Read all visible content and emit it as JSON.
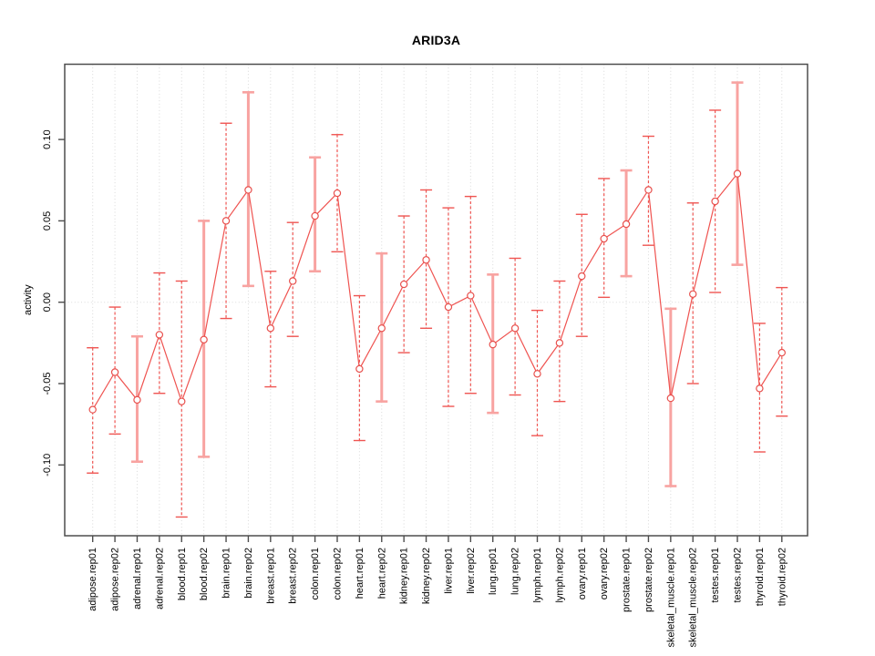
{
  "chart_data": {
    "type": "scatter",
    "subtype": "error-bar-line-plot",
    "title": "ARID3A",
    "xlabel": "",
    "ylabel": "activity",
    "legend": "none",
    "grid": "vertical dotted gridline at every category; dotted horizontal line at y=0",
    "ylim": [
      -0.145,
      0.147
    ],
    "yticks": [
      -0.1,
      -0.05,
      0.0,
      0.05,
      0.1
    ],
    "ytick_labels": [
      "-0.10",
      "-0.05",
      "0.00",
      "0.05",
      "0.10"
    ],
    "categories": [
      "adipose.rep01",
      "adipose.rep02",
      "adrenal.rep01",
      "adrenal.rep02",
      "blood.rep01",
      "blood.rep02",
      "brain.rep01",
      "brain.rep02",
      "breast.rep01",
      "breast.rep02",
      "colon.rep01",
      "colon.rep02",
      "heart.rep01",
      "heart.rep02",
      "kidney.rep01",
      "kidney.rep02",
      "liver.rep01",
      "liver.rep02",
      "lung.rep01",
      "lung.rep02",
      "lymph.rep01",
      "lymph.rep02",
      "ovary.rep01",
      "ovary.rep02",
      "prostate.rep01",
      "prostate.rep02",
      "skeletal_muscle.rep01",
      "skeletal_muscle.rep02",
      "testes.rep01",
      "testes.rep02",
      "thyroid.rep01",
      "thyroid.rep02"
    ],
    "series": [
      {
        "name": "activity",
        "values": [
          -0.066,
          -0.043,
          -0.06,
          -0.02,
          -0.061,
          -0.023,
          0.05,
          0.069,
          -0.016,
          0.013,
          0.053,
          0.067,
          -0.041,
          -0.016,
          0.011,
          0.026,
          -0.003,
          0.004,
          -0.026,
          -0.016,
          -0.044,
          -0.025,
          0.016,
          0.039,
          0.048,
          0.069,
          -0.059,
          0.005,
          0.062,
          0.079,
          -0.053,
          -0.031
        ],
        "err_high": [
          -0.028,
          -0.003,
          -0.021,
          0.018,
          0.013,
          0.05,
          0.11,
          0.129,
          0.019,
          0.049,
          0.089,
          0.103,
          0.004,
          0.03,
          0.053,
          0.069,
          0.058,
          0.065,
          0.017,
          0.027,
          -0.005,
          0.013,
          0.054,
          0.076,
          0.081,
          0.102,
          -0.004,
          0.061,
          0.118,
          0.135,
          -0.013,
          0.009
        ],
        "err_low": [
          -0.105,
          -0.081,
          -0.098,
          -0.056,
          -0.132,
          -0.095,
          -0.01,
          0.01,
          -0.052,
          -0.021,
          0.019,
          0.031,
          -0.085,
          -0.061,
          -0.031,
          -0.016,
          -0.064,
          -0.056,
          -0.068,
          -0.057,
          -0.082,
          -0.061,
          -0.021,
          0.003,
          0.016,
          0.035,
          -0.113,
          -0.05,
          0.006,
          0.023,
          -0.092,
          -0.07
        ],
        "bar_styles": [
          "dashed",
          "dashed",
          "solid",
          "dashed",
          "dashed",
          "solid",
          "dashed",
          "solid",
          "dashed",
          "dashed",
          "solid",
          "dashed",
          "dashed",
          "solid",
          "dashed",
          "dashed",
          "dashed",
          "dashed",
          "solid",
          "dashed",
          "dashed",
          "dashed",
          "dashed",
          "dashed",
          "solid",
          "dashed",
          "solid",
          "dashed",
          "dashed",
          "solid",
          "dashed",
          "dashed"
        ]
      }
    ],
    "colors": {
      "line": "#ef5350",
      "point_stroke": "#e8504d",
      "bar_dashed": "#ef5552",
      "bar_solid": "#f8a3a1",
      "grid": "#d9d9d9",
      "zero_line": "#dcdcdc",
      "axis": "#4d4d4d",
      "text": "#000000"
    }
  }
}
